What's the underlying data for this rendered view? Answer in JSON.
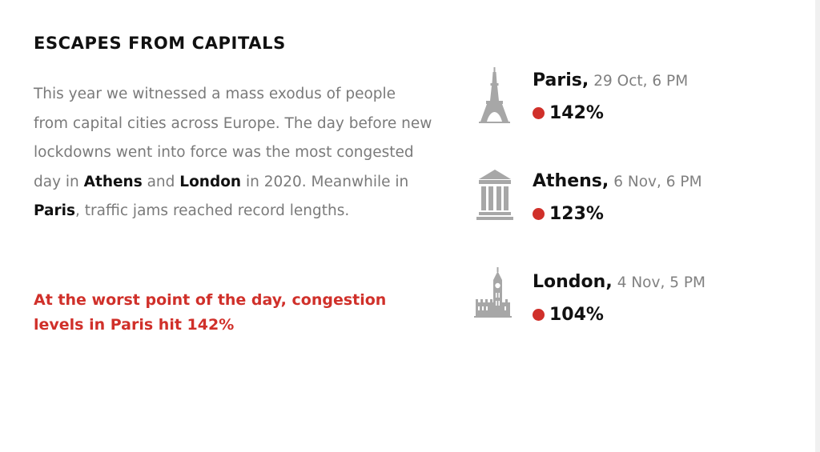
{
  "title": "ESCAPES FROM CAPITALS",
  "intro": {
    "part1": "This year we witnessed a mass exodus of people from capital cities across Europe. The day before new lockdowns went into force was the most congested day in ",
    "athens": "Athens",
    "and": " and ",
    "london": "London",
    "part2": " in 2020. Meanwhile in ",
    "paris": "Paris",
    "part3": ", traffic jams reached record lengths."
  },
  "highlight": "At the worst point of the day, congestion levels in Paris hit 142%",
  "accent_color": "#d0302a",
  "cities": [
    {
      "name": "Paris",
      "date": "29 Oct, 6 PM",
      "value": "142%",
      "icon": "eiffel-tower-icon"
    },
    {
      "name": "Athens",
      "date": "6 Nov, 6 PM",
      "value": "123%",
      "icon": "greek-temple-icon"
    },
    {
      "name": "London",
      "date": "4 Nov, 5 PM",
      "value": "104%",
      "icon": "big-ben-icon"
    }
  ]
}
